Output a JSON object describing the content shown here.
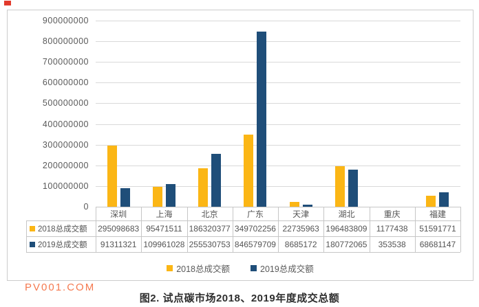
{
  "page": {
    "watermark": "PV001.COM",
    "caption": "图2. 试点碳市场2018、2019年度成交总额"
  },
  "chart_data": {
    "type": "bar",
    "title": "图2. 试点碳市场2018、2019年度成交总额",
    "categories": [
      "深圳",
      "上海",
      "北京",
      "广东",
      "天津",
      "湖北",
      "重庆",
      "福建"
    ],
    "series": [
      {
        "name": "2018总成交额",
        "color": "#FBB615",
        "values": [
          295098683,
          95471511,
          186320377,
          349702256,
          22735963,
          196483809,
          1177438,
          51591771
        ]
      },
      {
        "name": "2019总成交额",
        "color": "#1F4E79",
        "values": [
          91311321,
          109961028,
          255530753,
          846579709,
          8685172,
          180772065,
          353538,
          68681147
        ]
      }
    ],
    "ylim": [
      0,
      900000000
    ],
    "y_ticks": [
      0,
      100000000,
      200000000,
      300000000,
      400000000,
      500000000,
      600000000,
      700000000,
      800000000,
      900000000
    ],
    "y_tick_labels": [
      "0",
      "100000000",
      "200000000",
      "300000000",
      "400000000",
      "500000000",
      "600000000",
      "700000000",
      "800000000",
      "900000000"
    ],
    "xlabel": "",
    "ylabel": "",
    "grid": true,
    "legend_position": "bottom",
    "data_table": true
  }
}
